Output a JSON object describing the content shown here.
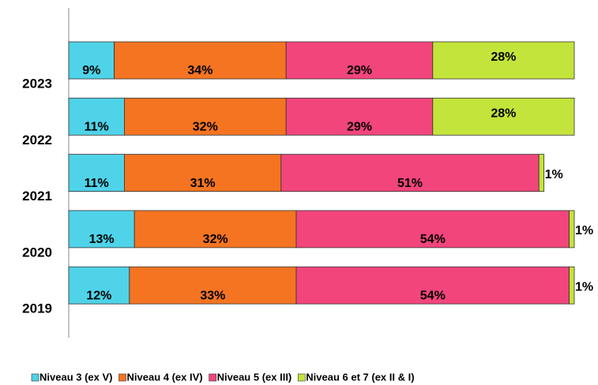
{
  "chart_data": {
    "type": "stacked-bar-horizontal",
    "categories": [
      "2023",
      "2022",
      "2021",
      "2020",
      "2019"
    ],
    "xlim": [
      0,
      100
    ],
    "series": [
      {
        "name": "Niveau 3 (ex V)",
        "color": "#4fd3e8",
        "values": [
          9,
          11,
          11,
          13,
          12
        ],
        "value_labels": [
          "9%",
          "11%",
          "11%",
          "13%",
          "12%"
        ]
      },
      {
        "name": "Niveau 4 (ex IV)",
        "color": "#f47421",
        "values": [
          34,
          32,
          31,
          32,
          33
        ],
        "value_labels": [
          "34%",
          "32%",
          "31%",
          "32%",
          "33%"
        ]
      },
      {
        "name": "Niveau 5 (ex III)",
        "color": "#f2457c",
        "values": [
          29,
          29,
          51,
          54,
          54
        ],
        "value_labels": [
          "29%",
          "29%",
          "51%",
          "54%",
          "54%"
        ]
      },
      {
        "name": "Niveau 6 et 7 (ex II & I)",
        "color": "#c3e43a",
        "values": [
          28,
          28,
          1,
          1,
          1
        ],
        "value_labels": [
          "28%",
          "28%",
          "1%",
          "1%",
          "1%"
        ]
      }
    ]
  }
}
